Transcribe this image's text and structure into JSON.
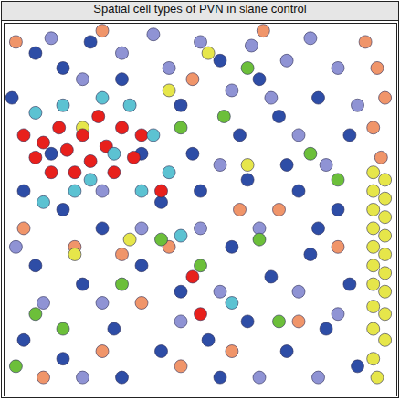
{
  "chart_data": {
    "type": "scatter",
    "title": "Spatial cell types of PVN in slane control",
    "xlim": [
      0,
      100
    ],
    "ylim": [
      0,
      100
    ],
    "tick_labels": false,
    "marker": "circle",
    "series": [
      {
        "color": "#2e4da6",
        "x": [
          2,
          8,
          15,
          22,
          30,
          45,
          55,
          60,
          70,
          80,
          88,
          5,
          15,
          25,
          40,
          50,
          62,
          75,
          85,
          8,
          20,
          35,
          45,
          58,
          68,
          78,
          88,
          5,
          15,
          28,
          40,
          52,
          62,
          72,
          82,
          90,
          35,
          48,
          72,
          80,
          55,
          30,
          12,
          65
        ],
        "y": [
          20,
          8,
          12,
          5,
          15,
          22,
          10,
          30,
          25,
          20,
          30,
          45,
          50,
          55,
          48,
          45,
          42,
          45,
          50,
          65,
          70,
          65,
          72,
          60,
          68,
          62,
          70,
          85,
          90,
          82,
          88,
          85,
          80,
          88,
          82,
          92,
          35,
          35,
          38,
          55,
          95,
          95,
          35,
          15
        ]
      },
      {
        "color": "#8f93d4",
        "x": [
          12,
          20,
          30,
          38,
          42,
          50,
          58,
          63,
          72,
          78,
          85,
          90,
          68,
          75,
          82,
          55,
          25,
          35,
          50,
          65,
          75,
          55,
          25,
          10,
          45,
          80,
          65,
          20,
          85,
          3
        ],
        "y": [
          4,
          15,
          8,
          3,
          12,
          5,
          18,
          6,
          10,
          4,
          12,
          22,
          20,
          30,
          38,
          38,
          45,
          55,
          55,
          55,
          72,
          72,
          75,
          75,
          80,
          95,
          95,
          95,
          78,
          60
        ]
      },
      {
        "color": "#f0956a",
        "x": [
          3,
          25,
          48,
          66,
          92,
          95,
          97,
          94,
          96,
          70,
          42,
          30,
          18,
          60,
          45,
          10,
          75,
          58,
          85,
          25,
          35,
          5
        ],
        "y": [
          5,
          2,
          15,
          2,
          5,
          12,
          20,
          28,
          36,
          50,
          60,
          62,
          60,
          50,
          92,
          95,
          80,
          88,
          60,
          88,
          75,
          55
        ]
      },
      {
        "color": "#e6e64a",
        "x": [
          94,
          97,
          94,
          97,
          94,
          97,
          94,
          97,
          94,
          97,
          94,
          97,
          94,
          97,
          94,
          97,
          94,
          97,
          94,
          95,
          42,
          52,
          20,
          62,
          18,
          32
        ],
        "y": [
          40,
          42,
          45,
          47,
          50,
          52,
          55,
          57,
          60,
          62,
          65,
          67,
          70,
          72,
          76,
          78,
          82,
          85,
          90,
          95,
          18,
          8,
          28,
          38,
          62,
          58
        ]
      },
      {
        "color": "#e8201c",
        "x": [
          5,
          10,
          8,
          14,
          16,
          20,
          22,
          26,
          30,
          28,
          12,
          24,
          33,
          35,
          18,
          48,
          50,
          40
        ],
        "y": [
          30,
          32,
          36,
          28,
          34,
          30,
          37,
          33,
          28,
          40,
          40,
          25,
          36,
          30,
          40,
          68,
          78,
          45
        ]
      },
      {
        "color": "#5cc2d2",
        "x": [
          8,
          15,
          25,
          32,
          28,
          18,
          10,
          38,
          35,
          42,
          22,
          58,
          45
        ],
        "y": [
          24,
          22,
          20,
          22,
          35,
          45,
          48,
          30,
          45,
          40,
          42,
          75,
          57
        ]
      },
      {
        "color": "#6cbf3a",
        "x": [
          45,
          62,
          78,
          8,
          30,
          50,
          40,
          56,
          70,
          15,
          85,
          65,
          3
        ],
        "y": [
          28,
          12,
          35,
          78,
          70,
          65,
          58,
          25,
          80,
          82,
          42,
          58,
          92
        ]
      }
    ]
  }
}
